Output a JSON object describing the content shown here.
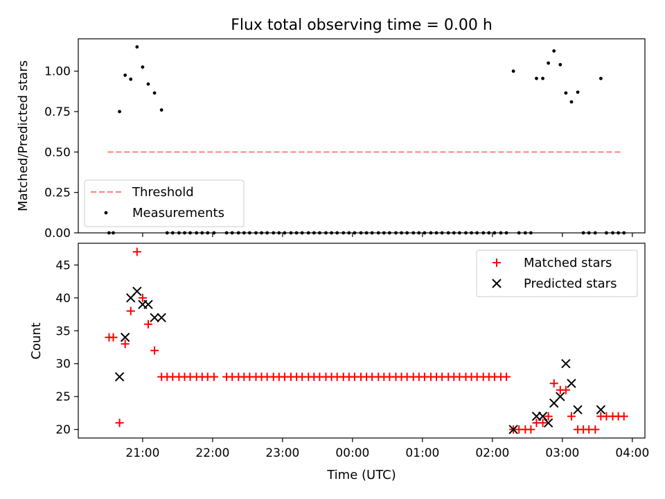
{
  "title": "Flux total observing time = 0.00 h",
  "chart_data": [
    {
      "type": "scatter",
      "ylabel": "Matched/Predicted stars",
      "xlabel": "",
      "x_unit": "hours relative to 00:00 UTC",
      "xlim": [
        -3.92,
        4.18
      ],
      "ylim": [
        0.0,
        1.2
      ],
      "x_ticks": [
        -3,
        -2,
        -1,
        0,
        1,
        2,
        3,
        4
      ],
      "x_ticklabels": [
        "",
        "",
        "",
        "",
        "",
        "",
        "",
        ""
      ],
      "y_ticks": [
        0.0,
        0.25,
        0.5,
        0.75,
        1.0
      ],
      "y_ticklabels": [
        "0.00",
        "0.25",
        "0.50",
        "0.75",
        "1.00"
      ],
      "legend": {
        "position": "lower-left",
        "entries": [
          "Threshold",
          "Measurements"
        ]
      },
      "series": [
        {
          "name": "Threshold",
          "style": "dashed-line",
          "color": "#ff7f7f",
          "x": [
            -3.5,
            3.85
          ],
          "y": [
            0.5,
            0.5
          ]
        },
        {
          "name": "Measurements",
          "style": "dot",
          "color": "#000000",
          "x": [
            -3.48,
            -3.42,
            -3.33,
            -3.25,
            -3.17,
            -3.08,
            -3.0,
            -2.92,
            -2.83,
            -2.73,
            -2.65,
            -2.57,
            -2.48,
            -2.4,
            -2.32,
            -2.23,
            -2.15,
            -2.07,
            -1.98,
            -1.8,
            -1.72,
            -1.63,
            -1.55,
            -1.47,
            -1.38,
            -1.3,
            -1.22,
            -1.13,
            -1.05,
            -0.97,
            -0.88,
            -0.8,
            -0.72,
            -0.63,
            -0.55,
            -0.47,
            -0.38,
            -0.3,
            -0.22,
            -0.13,
            -0.05,
            0.03,
            0.12,
            0.2,
            0.28,
            0.37,
            0.45,
            0.53,
            0.62,
            0.7,
            0.78,
            0.87,
            0.95,
            1.03,
            1.12,
            1.2,
            1.28,
            1.37,
            1.45,
            1.53,
            1.62,
            1.7,
            1.78,
            1.87,
            1.95,
            2.03,
            2.12,
            2.2,
            2.3,
            2.38,
            2.47,
            2.55,
            2.63,
            2.72,
            2.8,
            2.88,
            2.97,
            3.05,
            3.13,
            3.22,
            3.3,
            3.38,
            3.47,
            3.55,
            3.63,
            3.72,
            3.8,
            3.88
          ],
          "y": [
            0.0,
            0.0,
            0.75,
            0.975,
            0.95,
            1.15,
            1.025,
            0.92,
            0.865,
            0.76,
            0.0,
            0.0,
            0.0,
            0.0,
            0.0,
            0.0,
            0.0,
            0.0,
            0.0,
            0.0,
            0.0,
            0.0,
            0.0,
            0.0,
            0.0,
            0.0,
            0.0,
            0.0,
            0.0,
            0.0,
            0.0,
            0.0,
            0.0,
            0.0,
            0.0,
            0.0,
            0.0,
            0.0,
            0.0,
            0.0,
            0.0,
            0.0,
            0.0,
            0.0,
            0.0,
            0.0,
            0.0,
            0.0,
            0.0,
            0.0,
            0.0,
            0.0,
            0.0,
            0.0,
            0.0,
            0.0,
            0.0,
            0.0,
            0.0,
            0.0,
            0.0,
            0.0,
            0.0,
            0.0,
            0.0,
            0.0,
            0.0,
            0.0,
            1.0,
            0.0,
            0.0,
            0.0,
            0.955,
            0.955,
            1.05,
            1.125,
            1.04,
            0.865,
            0.81,
            0.87,
            0.0,
            0.0,
            0.0,
            0.955,
            0.0,
            0.0,
            0.0,
            0.0
          ]
        }
      ]
    },
    {
      "type": "scatter",
      "ylabel": "Count",
      "xlabel": "Time (UTC)",
      "x_unit": "hours relative to 00:00 UTC",
      "xlim": [
        -3.92,
        4.18
      ],
      "ylim": [
        18.7,
        48.3
      ],
      "x_ticks": [
        -3,
        -2,
        -1,
        0,
        1,
        2,
        3,
        4
      ],
      "x_ticklabels": [
        "21:00",
        "22:00",
        "23:00",
        "00:00",
        "01:00",
        "02:00",
        "03:00",
        "04:00"
      ],
      "y_ticks": [
        20,
        25,
        30,
        35,
        40,
        45
      ],
      "y_ticklabels": [
        "20",
        "25",
        "30",
        "35",
        "40",
        "45"
      ],
      "legend": {
        "position": "upper-right",
        "entries": [
          "Matched stars",
          "Predicted stars"
        ]
      },
      "series": [
        {
          "name": "Matched stars",
          "marker": "+",
          "color": "#ff0000",
          "x": [
            -3.48,
            -3.42,
            -3.33,
            -3.25,
            -3.17,
            -3.08,
            -3.0,
            -2.92,
            -2.83,
            -2.73,
            -2.65,
            -2.57,
            -2.48,
            -2.4,
            -2.32,
            -2.23,
            -2.15,
            -2.07,
            -1.98,
            -1.8,
            -1.72,
            -1.63,
            -1.55,
            -1.47,
            -1.38,
            -1.3,
            -1.22,
            -1.13,
            -1.05,
            -0.97,
            -0.88,
            -0.8,
            -0.72,
            -0.63,
            -0.55,
            -0.47,
            -0.38,
            -0.3,
            -0.22,
            -0.13,
            -0.05,
            0.03,
            0.12,
            0.2,
            0.28,
            0.37,
            0.45,
            0.53,
            0.62,
            0.7,
            0.78,
            0.87,
            0.95,
            1.03,
            1.12,
            1.2,
            1.28,
            1.37,
            1.45,
            1.53,
            1.62,
            1.7,
            1.78,
            1.87,
            1.95,
            2.03,
            2.12,
            2.2,
            2.3,
            2.38,
            2.47,
            2.55,
            2.63,
            2.72,
            2.8,
            2.88,
            2.97,
            3.05,
            3.13,
            3.22,
            3.3,
            3.38,
            3.47,
            3.55,
            3.63,
            3.72,
            3.8,
            3.88
          ],
          "y": [
            34,
            34,
            21,
            33,
            38,
            47,
            40,
            36,
            32,
            28,
            28,
            28,
            28,
            28,
            28,
            28,
            28,
            28,
            28,
            28,
            28,
            28,
            28,
            28,
            28,
            28,
            28,
            28,
            28,
            28,
            28,
            28,
            28,
            28,
            28,
            28,
            28,
            28,
            28,
            28,
            28,
            28,
            28,
            28,
            28,
            28,
            28,
            28,
            28,
            28,
            28,
            28,
            28,
            28,
            28,
            28,
            28,
            28,
            28,
            28,
            28,
            28,
            28,
            28,
            28,
            28,
            28,
            28,
            20,
            20,
            20,
            20,
            21,
            21,
            22,
            27,
            26,
            26,
            22,
            20,
            20,
            20,
            20,
            22,
            22,
            22,
            22,
            22
          ]
        },
        {
          "name": "Predicted stars",
          "marker": "x",
          "color": "#000000",
          "x": [
            -3.33,
            -3.25,
            -3.17,
            -3.08,
            -3.0,
            -2.92,
            -2.83,
            -2.73,
            2.3,
            2.63,
            2.72,
            2.8,
            2.88,
            2.97,
            3.05,
            3.13,
            3.22,
            3.55
          ],
          "y": [
            28,
            34,
            40,
            41,
            39,
            39,
            37,
            37,
            20,
            22,
            22,
            21,
            24,
            25,
            30,
            27,
            23,
            23
          ]
        }
      ]
    }
  ]
}
